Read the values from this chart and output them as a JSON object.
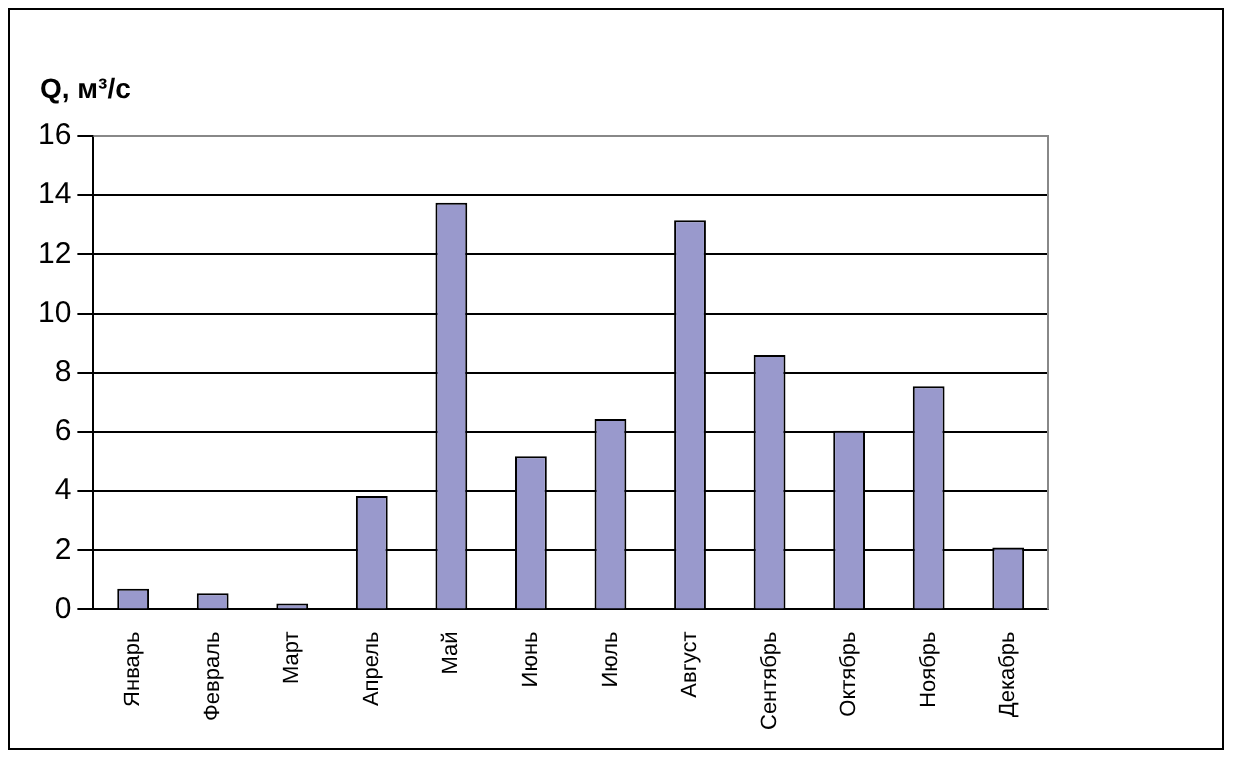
{
  "chart_data": {
    "type": "bar",
    "ylabel": "Q, м³/с",
    "categories": [
      "Январь",
      "Февраль",
      "Март",
      "Апрель",
      "Май",
      "Июнь",
      "Июль",
      "Август",
      "Сентябрь",
      "Октябрь",
      "Ноябрь",
      "Декабрь"
    ],
    "values": [
      0.7,
      0.55,
      0.2,
      3.83,
      13.74,
      5.18,
      6.44,
      13.15,
      8.6,
      6.04,
      7.54,
      2.09
    ],
    "color": "#9999cc",
    "ylim": [
      0,
      16
    ],
    "yticks": [
      0,
      2,
      4,
      6,
      8,
      10,
      12,
      14,
      16
    ],
    "grid": "y",
    "legend": false
  }
}
